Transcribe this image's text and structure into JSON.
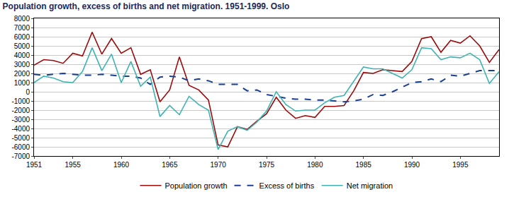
{
  "chart_data": {
    "type": "line",
    "title": "Population growth, excess of births and net migration. 1951-1999. Oslo",
    "x": [
      1951,
      1952,
      1953,
      1954,
      1955,
      1956,
      1957,
      1958,
      1959,
      1960,
      1961,
      1962,
      1963,
      1964,
      1965,
      1966,
      1967,
      1968,
      1969,
      1970,
      1971,
      1972,
      1973,
      1974,
      1975,
      1976,
      1977,
      1978,
      1979,
      1980,
      1981,
      1982,
      1983,
      1984,
      1985,
      1986,
      1987,
      1988,
      1989,
      1990,
      1991,
      1992,
      1993,
      1994,
      1995,
      1996,
      1997,
      1998,
      1999
    ],
    "series": [
      {
        "name": "Population growth",
        "color": "#9b0a0a",
        "line_style": "solid",
        "values": [
          2900,
          3500,
          3400,
          3100,
          4200,
          3900,
          6500,
          4100,
          5800,
          4200,
          4800,
          1900,
          2400,
          -1100,
          200,
          3800,
          700,
          200,
          -900,
          -5800,
          -6000,
          -3800,
          -4100,
          -3200,
          -2400,
          -600,
          -2000,
          -2900,
          -2600,
          -2800,
          -1600,
          -1600,
          -1500,
          100,
          2100,
          2000,
          2400,
          2300,
          2200,
          3300,
          5800,
          6000,
          4300,
          5600,
          5300,
          6100,
          5000,
          3200,
          4600
        ]
      },
      {
        "name": "Excess of births",
        "color": "#1a3f94",
        "line_style": "dashed",
        "values": [
          1900,
          1800,
          1900,
          2000,
          1900,
          1800,
          1800,
          1900,
          1800,
          1700,
          1700,
          1500,
          800,
          1600,
          1700,
          1600,
          1200,
          1400,
          1200,
          800,
          800,
          800,
          100,
          200,
          -300,
          -500,
          -700,
          -800,
          -800,
          -900,
          -900,
          -1000,
          -1100,
          -1000,
          -800,
          -300,
          -400,
          0,
          500,
          1000,
          1100,
          1400,
          1100,
          1800,
          1700,
          2000,
          2300,
          2300,
          2300
        ]
      },
      {
        "name": "Net migration",
        "color": "#3fb3b3",
        "line_style": "solid",
        "values": [
          1000,
          1700,
          1500,
          1100,
          1000,
          2200,
          4800,
          2300,
          4100,
          1000,
          3300,
          600,
          1600,
          -2700,
          -1500,
          -2500,
          -500,
          -1400,
          -2000,
          -6300,
          -4300,
          -3800,
          -4200,
          -3300,
          -2100,
          0,
          -1400,
          -2100,
          -2000,
          -2000,
          -1200,
          -600,
          -400,
          1200,
          2700,
          2500,
          2500,
          2000,
          1500,
          2400,
          4800,
          4700,
          3500,
          3800,
          3700,
          4200,
          3500,
          900,
          2200
        ]
      }
    ],
    "xlim": [
      1951,
      1999
    ],
    "xticks": [
      1951,
      1955,
      1960,
      1965,
      1970,
      1975,
      1980,
      1985,
      1990,
      1995
    ],
    "ylim": [
      -7000,
      8000
    ],
    "yticks": [
      -7000,
      -6000,
      -5000,
      -4000,
      -3000,
      -2000,
      -1000,
      0,
      1000,
      2000,
      3000,
      4000,
      5000,
      6000,
      7000,
      8000
    ],
    "grid": true,
    "legend": "bottom"
  }
}
